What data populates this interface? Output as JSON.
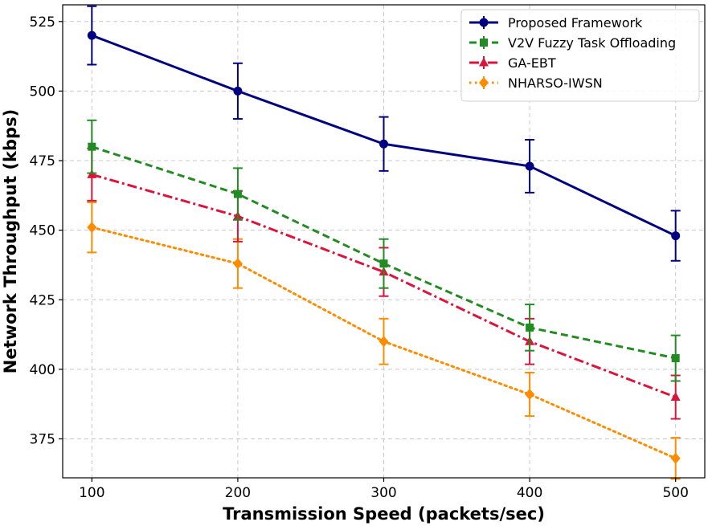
{
  "chart_data": {
    "type": "line",
    "title": "",
    "xlabel": "Transmission Speed (packets/sec)",
    "ylabel": "Network Throughput (kbps)",
    "x": [
      100,
      200,
      300,
      400,
      500
    ],
    "xticks": [
      "100",
      "200",
      "300",
      "400",
      "500"
    ],
    "xlim": [
      80,
      520
    ],
    "ylim": [
      361,
      531
    ],
    "yticks": [
      375,
      400,
      425,
      450,
      475,
      500,
      525
    ],
    "grid": true,
    "legend_position": "top-right",
    "series": [
      {
        "name": "Proposed Framework",
        "color": "#000080",
        "linestyle": "solid",
        "marker": "circle",
        "values": [
          520,
          500,
          481,
          473,
          448
        ],
        "errors": [
          10.5,
          10,
          9.7,
          9.5,
          9
        ]
      },
      {
        "name": "V2V Fuzzy Task Offloading",
        "color": "#228b22",
        "linestyle": "dashed",
        "marker": "square",
        "values": [
          480,
          463,
          438,
          415,
          404
        ],
        "errors": [
          9.5,
          9.3,
          8.8,
          8.3,
          8.2
        ]
      },
      {
        "name": "GA-EBT",
        "color": "#dc143c",
        "linestyle": "dashdot",
        "marker": "triangle",
        "values": [
          470,
          455,
          435,
          410,
          390
        ],
        "errors": [
          9.4,
          9.1,
          8.7,
          8.2,
          7.8
        ]
      },
      {
        "name": "NHARSO-IWSN",
        "color": "#ff8c00",
        "linestyle": "dotted",
        "marker": "diamond",
        "values": [
          451,
          438,
          410,
          391,
          368
        ],
        "errors": [
          9,
          8.8,
          8.2,
          7.8,
          7.4
        ]
      }
    ]
  }
}
